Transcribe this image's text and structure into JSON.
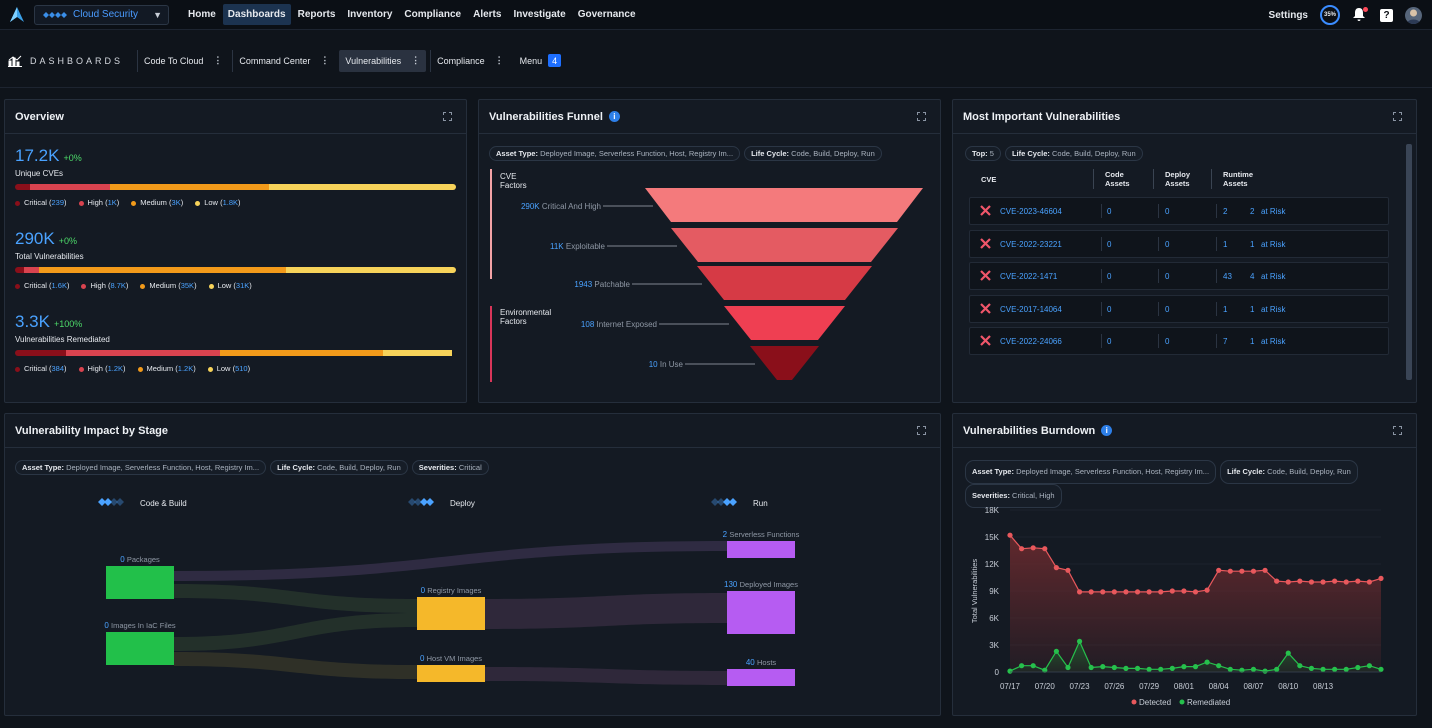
{
  "topbar": {
    "product": "Cloud Security",
    "nav": [
      "Home",
      "Dashboards",
      "Reports",
      "Inventory",
      "Compliance",
      "Alerts",
      "Investigate",
      "Governance"
    ],
    "active_nav": "Dashboards",
    "settings": "Settings",
    "progress_label": "35%",
    "progress": 0.35,
    "help": "?"
  },
  "subbar": {
    "title": "DASHBOARDS",
    "tabs": [
      {
        "label": "Code To Cloud",
        "dots": "⋮"
      },
      {
        "label": "Command Center",
        "dots": "⋮"
      },
      {
        "label": "Vulnerabilities",
        "dots": "⋮"
      },
      {
        "label": "Compliance",
        "dots": "⋮"
      }
    ],
    "menu": "Menu",
    "menu_count": "4"
  },
  "overview": {
    "title": "Overview",
    "blocks": [
      {
        "value": "17.2K",
        "delta": "+0%",
        "label": "Unique CVEs",
        "segments": [
          0.035,
          0.18,
          0.36,
          0.425
        ],
        "legend": [
          {
            "name": "Critical",
            "val": "239"
          },
          {
            "name": "High",
            "val": "1K"
          },
          {
            "name": "Medium",
            "val": "3K"
          },
          {
            "name": "Low",
            "val": "1.8K"
          }
        ],
        "open": "(",
        "close": ")"
      },
      {
        "value": "290K",
        "delta": "+0%",
        "label": "Total Vulnerabilities",
        "segments": [
          0.02,
          0.035,
          0.56,
          0.385
        ],
        "legend": [
          {
            "name": "Critical",
            "val": "1.6K"
          },
          {
            "name": "High",
            "val": "8.7K"
          },
          {
            "name": "Medium",
            "val": "35K"
          },
          {
            "name": "Low",
            "val": "31K"
          }
        ],
        "open": "(",
        "close": ")"
      },
      {
        "value": "3.3K",
        "delta": "+100%",
        "label": "Vulnerabilities Remediated",
        "segments": [
          0.115,
          0.35,
          0.37,
          0.155
        ],
        "legend": [
          {
            "name": "Critical",
            "val": "384"
          },
          {
            "name": "High",
            "val": "1.2K"
          },
          {
            "name": "Medium",
            "val": "1.2K"
          },
          {
            "name": "Low",
            "val": "510"
          }
        ],
        "open": "(",
        "close": ")"
      }
    ],
    "colors": {
      "critical": "#8a0f1a",
      "high": "#d9434f",
      "medium": "#f29a1a",
      "low": "#f7d35a"
    }
  },
  "funnel": {
    "title": "Vulnerabilities Funnel",
    "chips": [
      {
        "k": "Asset Type:",
        "v": "Deployed Image, Serverless Function, Host, Registry Im..."
      },
      {
        "k": "Life Cycle:",
        "v": "Code, Build, Deploy, Run"
      }
    ],
    "group1": "CVE\nFactors",
    "group2": "Environmental\nFactors",
    "levels": [
      {
        "num": "290K",
        "label": "Critical And High",
        "color": "#f47a7c"
      },
      {
        "num": "11K",
        "label": "Exploitable",
        "color": "#e45b62"
      },
      {
        "num": "1943",
        "label": "Patchable",
        "color": "#d63a45"
      },
      {
        "num": "108",
        "label": "Internet Exposed",
        "color": "#ef3f52"
      },
      {
        "num": "10",
        "label": "In Use",
        "color": "#8a0f1a"
      }
    ]
  },
  "miv": {
    "title": "Most Important Vulnerabilities",
    "chips": [
      {
        "k": "Top:",
        "v": "5"
      },
      {
        "k": "Life Cycle:",
        "v": "Code, Build, Deploy, Run"
      }
    ],
    "headers": [
      "CVE",
      "Code\nAssets",
      "Deploy\nAssets",
      "Runtime\nAssets"
    ],
    "rows": [
      {
        "cve": "CVE-2023-46604",
        "code": "0",
        "deploy": "0",
        "runtime": "2",
        "risk": "2",
        "risk_lbl": "at Risk"
      },
      {
        "cve": "CVE-2022-23221",
        "code": "0",
        "deploy": "0",
        "runtime": "1",
        "risk": "1",
        "risk_lbl": "at Risk"
      },
      {
        "cve": "CVE-2022-1471",
        "code": "0",
        "deploy": "0",
        "runtime": "43",
        "risk": "4",
        "risk_lbl": "at Risk"
      },
      {
        "cve": "CVE-2017-14064",
        "code": "0",
        "deploy": "0",
        "runtime": "1",
        "risk": "1",
        "risk_lbl": "at Risk"
      },
      {
        "cve": "CVE-2022-24066",
        "code": "0",
        "deploy": "0",
        "runtime": "7",
        "risk": "1",
        "risk_lbl": "at Risk"
      }
    ]
  },
  "impact": {
    "title": "Vulnerability Impact by Stage",
    "chips": [
      {
        "k": "Asset Type:",
        "v": "Deployed Image, Serverless Function, Host, Registry Im..."
      },
      {
        "k": "Life Cycle:",
        "v": "Code, Build, Deploy, Run"
      },
      {
        "k": "Severities:",
        "v": "Critical"
      }
    ],
    "stages": [
      "Code & Build",
      "Deploy",
      "Run"
    ],
    "nodes": [
      {
        "num": "0",
        "label": "Packages",
        "color": "#22c04a"
      },
      {
        "num": "0",
        "label": "Images In IaC Files",
        "color": "#22c04a"
      },
      {
        "num": "0",
        "label": "Registry Images",
        "color": "#f5b82a"
      },
      {
        "num": "0",
        "label": "Host VM Images",
        "color": "#f5b82a"
      },
      {
        "num": "2",
        "label": "Serverless Functions",
        "color": "#b65cf2"
      },
      {
        "num": "130",
        "label": "Deployed Images",
        "color": "#b65cf2"
      },
      {
        "num": "40",
        "label": "Hosts",
        "color": "#b65cf2"
      }
    ]
  },
  "burndown": {
    "title": "Vulnerabilities Burndown",
    "chips": [
      {
        "k": "Asset Type:",
        "v": "Deployed Image, Serverless Function, Host, Registry Im..."
      },
      {
        "k": "Life Cycle:",
        "v": "Code, Build, Deploy, Run"
      },
      {
        "k": "Severities:",
        "v": "Critical, High"
      }
    ],
    "legend": [
      {
        "name": "Detected",
        "color": "#e8585c"
      },
      {
        "name": "Remediated",
        "color": "#26c04c"
      }
    ]
  },
  "chart_data": {
    "type": "line",
    "ylabel": "Total Vulnerabilities",
    "xlabel": "",
    "ylim": [
      0,
      18000
    ],
    "yticks": [
      "0",
      "3K",
      "6K",
      "9K",
      "12K",
      "15K",
      "18K"
    ],
    "xticks": [
      "07/17",
      "07/20",
      "07/23",
      "07/26",
      "07/29",
      "08/01",
      "08/04",
      "08/07",
      "08/10",
      "08/13"
    ],
    "series": [
      {
        "name": "Detected",
        "values": [
          15200,
          13700,
          13800,
          13700,
          11600,
          11300,
          8900,
          8900,
          8900,
          8900,
          8900,
          8900,
          8900,
          8900,
          9000,
          9000,
          8900,
          9100,
          11300,
          11200,
          11200,
          11200,
          11300,
          10100,
          10000,
          10100,
          10000,
          10000,
          10100,
          10000,
          10100,
          10000,
          10400
        ]
      },
      {
        "name": "Remediated",
        "values": [
          100,
          700,
          700,
          200,
          2300,
          500,
          3400,
          500,
          600,
          500,
          400,
          400,
          300,
          300,
          400,
          600,
          600,
          1100,
          700,
          300,
          200,
          300,
          100,
          300,
          2100,
          700,
          400,
          300,
          300,
          300,
          500,
          700,
          300
        ]
      }
    ]
  }
}
